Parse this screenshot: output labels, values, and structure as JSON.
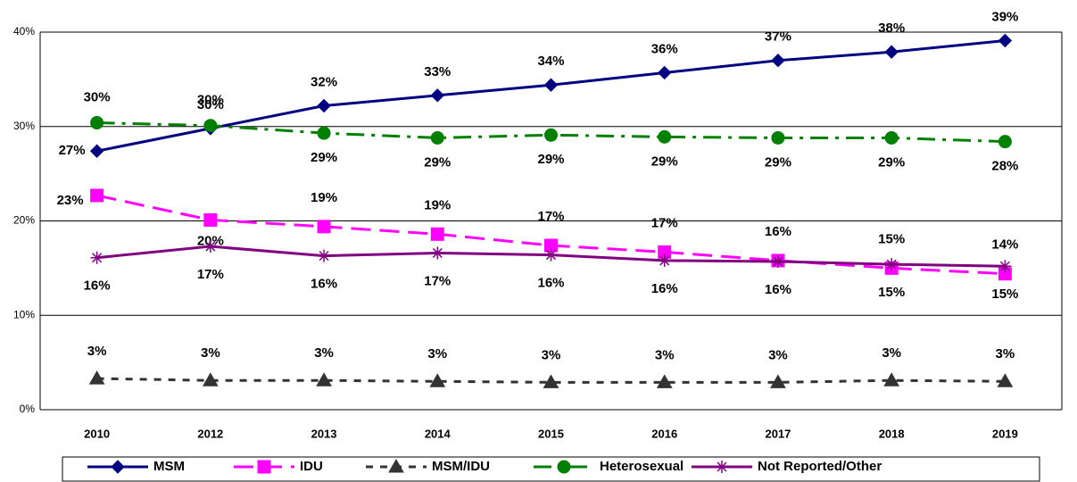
{
  "chart_data": {
    "type": "line",
    "categories": [
      "2010",
      "2012",
      "2013",
      "2014",
      "2015",
      "2016",
      "2017",
      "2018",
      "2019"
    ],
    "ylim": [
      0,
      40
    ],
    "yticks": [
      {
        "value": 0,
        "label": "0%"
      },
      {
        "value": 10,
        "label": "10%"
      },
      {
        "value": 20,
        "label": "20%"
      },
      {
        "value": 30,
        "label": "30%"
      },
      {
        "value": 40,
        "label": "40%"
      }
    ],
    "grid": true,
    "legend": "bottom",
    "series": [
      {
        "name": "MSM",
        "color": "#000080",
        "marker": "diamond",
        "dash": "solid",
        "values": [
          27.4,
          29.8,
          32.2,
          33.3,
          34.4,
          35.7,
          37.0,
          37.9,
          39.1
        ],
        "value_labels": [
          "27%",
          "30%",
          "32%",
          "33%",
          "34%",
          "36%",
          "37%",
          "38%",
          "39%"
        ]
      },
      {
        "name": "IDU",
        "color": "#ff00ff",
        "marker": "square",
        "dash": "dashed",
        "values": [
          22.7,
          20.1,
          19.4,
          18.6,
          17.4,
          16.7,
          15.8,
          15.0,
          14.4
        ],
        "value_labels": [
          "23%",
          "20%",
          "19%",
          "19%",
          "17%",
          "17%",
          "16%",
          "15%",
          "14%"
        ]
      },
      {
        "name": "MSM/IDU",
        "color": "#333333",
        "marker": "triangle",
        "dash": "dotted",
        "values": [
          3.3,
          3.1,
          3.1,
          3.0,
          2.9,
          2.9,
          2.9,
          3.1,
          3.0
        ],
        "value_labels": [
          "3%",
          "3%",
          "3%",
          "3%",
          "3%",
          "3%",
          "3%",
          "3%",
          "3%"
        ]
      },
      {
        "name": "Heterosexual",
        "color": "#008000",
        "marker": "circle",
        "dash": "dashdot",
        "values": [
          30.4,
          30.1,
          29.3,
          28.8,
          29.1,
          28.9,
          28.8,
          28.8,
          28.4
        ],
        "value_labels": [
          "30%",
          "30%",
          "29%",
          "29%",
          "29%",
          "29%",
          "29%",
          "29%",
          "28%"
        ]
      },
      {
        "name": "Not Reported/Other",
        "color": "#800080",
        "marker": "star",
        "dash": "solid",
        "values": [
          16.1,
          17.3,
          16.3,
          16.6,
          16.4,
          15.8,
          15.7,
          15.4,
          15.2
        ],
        "value_labels": [
          "16%",
          "17%",
          "16%",
          "17%",
          "16%",
          "16%",
          "16%",
          "15%",
          "15%"
        ]
      }
    ]
  }
}
